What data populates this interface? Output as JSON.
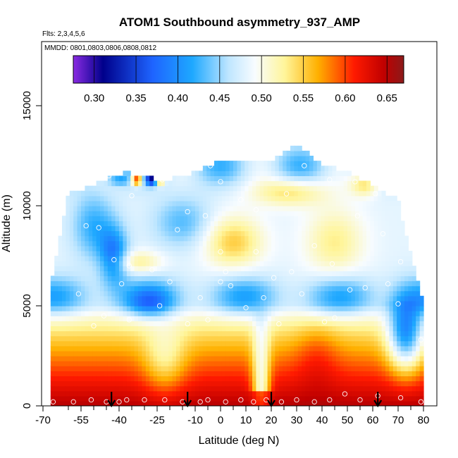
{
  "chart_data": {
    "type": "heatmap",
    "title": "ATOM1 Southbound asymmetry_937_AMP",
    "flights_note": "Flts: 2,3,4,5,6",
    "dates_note": "MMDD: 0801,0803,0806,0808,0812",
    "xlabel": "Latitude (deg N)",
    "ylabel": "Altitude (m)",
    "xlim": [
      -70,
      85
    ],
    "ylim": [
      0,
      17500
    ],
    "x_ticks": [
      -70,
      -55,
      -40,
      -25,
      -10,
      0,
      10,
      20,
      30,
      40,
      50,
      60,
      70,
      80
    ],
    "x_tick_labels": [
      "-70",
      "-55",
      "-40",
      "-25",
      "-10",
      "0",
      "10",
      "20",
      "30",
      "40",
      "50",
      "60",
      "70",
      "80"
    ],
    "x_minor_ticks": [
      -60,
      -50,
      -45,
      -35,
      -30,
      -20,
      -15,
      -5,
      5,
      15,
      25,
      35,
      45,
      55,
      65,
      75
    ],
    "y_ticks": [
      0,
      5000,
      10000,
      15000
    ],
    "y_tick_labels": [
      "0",
      "5000",
      "10000",
      "15000"
    ],
    "colorbar": {
      "range": [
        0.275,
        0.67
      ],
      "ticks": [
        0.3,
        0.35,
        0.4,
        0.45,
        0.5,
        0.55,
        0.6,
        0.65
      ],
      "tick_labels": [
        "0.30",
        "0.35",
        "0.40",
        "0.45",
        "0.50",
        "0.55",
        "0.60",
        "0.65"
      ],
      "colors": [
        "#8a2be2",
        "#00008b",
        "#1e90ff",
        "#a0d8ff",
        "#f4fbff",
        "#fffaa0",
        "#ffa500",
        "#ff0000",
        "#8b0000"
      ]
    },
    "heatmap_regions": {
      "lat_range": [
        -67,
        80
      ],
      "alt_bins_m": [
        0,
        500,
        1000,
        1500,
        2000,
        2500,
        3000,
        3500,
        4000,
        4500,
        5000,
        5500,
        6000,
        6500,
        7000,
        7500,
        8000,
        8500,
        9000,
        9500,
        10000,
        10500,
        11000,
        11500,
        12000,
        12500,
        13000
      ],
      "upper_extent_lat": [
        -67,
        -60,
        -52,
        -45,
        -38,
        -30,
        -22,
        -10,
        0,
        10,
        20,
        30,
        40,
        50,
        60,
        70,
        80
      ],
      "upper_extent_alt": [
        5800,
        10500,
        10900,
        11300,
        11600,
        11400,
        11200,
        11600,
        12200,
        12200,
        12100,
        13000,
        12000,
        11600,
        11000,
        10200,
        5000
      ]
    },
    "arrow_latitudes": [
      -43,
      -13,
      20,
      62
    ],
    "sample_points": [
      [
        -66,
        200
      ],
      [
        -58,
        200
      ],
      [
        -51,
        300
      ],
      [
        -45,
        200
      ],
      [
        -40,
        200
      ],
      [
        -37,
        300
      ],
      [
        -30,
        300
      ],
      [
        -22,
        300
      ],
      [
        -15,
        200
      ],
      [
        -8,
        200
      ],
      [
        -5,
        300
      ],
      [
        2,
        200
      ],
      [
        8,
        300
      ],
      [
        13,
        200
      ],
      [
        18,
        300
      ],
      [
        24,
        200
      ],
      [
        30,
        300
      ],
      [
        37,
        200
      ],
      [
        43,
        300
      ],
      [
        49,
        600
      ],
      [
        55,
        300
      ],
      [
        62,
        500
      ],
      [
        71,
        400
      ],
      [
        79,
        200
      ],
      [
        -56,
        5600
      ],
      [
        -50,
        4000
      ],
      [
        -46,
        4500
      ],
      [
        -39,
        6100
      ],
      [
        -36,
        4300
      ],
      [
        -24,
        5000
      ],
      [
        -20,
        6200
      ],
      [
        -13,
        4100
      ],
      [
        -8,
        5400
      ],
      [
        -5,
        4300
      ],
      [
        0,
        6200
      ],
      [
        4,
        6000
      ],
      [
        10,
        4900
      ],
      [
        17,
        5400
      ],
      [
        23,
        4100
      ],
      [
        32,
        5600
      ],
      [
        41,
        4200
      ],
      [
        45,
        4400
      ],
      [
        51,
        5800
      ],
      [
        57,
        5900
      ],
      [
        66,
        6100
      ],
      [
        70,
        5100
      ],
      [
        79,
        3300
      ],
      [
        -53,
        9000
      ],
      [
        -48,
        8900
      ],
      [
        -42,
        7300
      ],
      [
        -36,
        7000
      ],
      [
        -27,
        6800
      ],
      [
        -17,
        8800
      ],
      [
        -6,
        9500
      ],
      [
        0,
        7700
      ],
      [
        2,
        6700
      ],
      [
        14,
        7700
      ],
      [
        21,
        6400
      ],
      [
        28,
        6700
      ],
      [
        37,
        8000
      ],
      [
        44,
        7100
      ],
      [
        54,
        9500
      ],
      [
        64,
        8600
      ],
      [
        71,
        7200
      ],
      [
        -58,
        11200
      ],
      [
        -44,
        11500
      ],
      [
        -35,
        10500
      ],
      [
        -23,
        11300
      ],
      [
        -8,
        11900
      ],
      [
        -4,
        12000
      ],
      [
        0,
        11200
      ],
      [
        8,
        10300
      ],
      [
        14,
        9800
      ],
      [
        26,
        10600
      ],
      [
        33,
        12000
      ],
      [
        43,
        11300
      ],
      [
        53,
        11200
      ],
      [
        61,
        10600
      ],
      [
        -13,
        9700
      ],
      [
        -10,
        12700
      ],
      [
        25,
        13300
      ]
    ]
  }
}
